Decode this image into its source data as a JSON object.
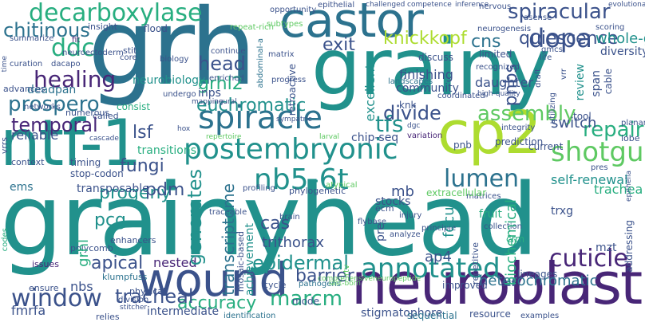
{
  "colors": {
    "background": "#ffffff",
    "palette": [
      "#482677",
      "#3b528b",
      "#2c728e",
      "#21918c",
      "#28ae80",
      "#5ec962",
      "#addc30",
      "#fde725"
    ]
  },
  "words": [
    "grainyhead",
    "grainy",
    "grh",
    "ntf-1",
    "neuroblast",
    "cp2",
    "castor",
    "wound",
    "postembryonic",
    "annotated",
    "decarboxylase",
    "spiracle",
    "nb5-6t",
    "dopa",
    "ddc",
    "chitinous",
    "spiracular",
    "shotgun",
    "lumen",
    "healing",
    "cuticle",
    "window",
    "accuracy",
    "repair",
    "temporal",
    "prospero",
    "tfs",
    "euchromatic",
    "knickkopf",
    "head",
    "grhl2",
    "exit",
    "cns",
    "quiescence",
    "assembly",
    "divide",
    "marcm",
    "barrier",
    "tracheal",
    "lsf",
    "fungi",
    "progeny",
    "pcg",
    "pdm",
    "apical",
    "epidermal",
    "fmrfa",
    "nested",
    "cas",
    "trithorax",
    "heterochromatic",
    "mb",
    "ap4",
    "self-renewal",
    "trachea",
    "switch",
    "whole-genome",
    "diversity",
    "finishing",
    "daughter",
    "variation",
    "chip-seq",
    "stocks",
    "fruit",
    "trxg",
    "reliable",
    "nbs",
    "ems",
    "transposable",
    "transitions",
    "neurobiology",
    "deadpan",
    "timing",
    "stop-codon",
    "enhancers",
    "polycomb",
    "issues",
    "klumpfuss",
    "physical",
    "division",
    "intermediate",
    "identification",
    "stigmatophore",
    "sequential",
    "resource",
    "examples",
    "mode",
    "pathogens",
    "relies",
    "cycle",
    "improved",
    "lineages",
    "set",
    "mzt",
    "crm",
    "pnb",
    "prediction",
    "current",
    "integrity",
    "community",
    "landscapes",
    "knk",
    "coordinated",
    "discuss",
    "recognized",
    "limited",
    "neurogenesis",
    "gmcs",
    "life",
    "asense",
    "nervous",
    "scoring",
    "tool",
    "planar",
    "lobe",
    "pres",
    "matrices",
    "extracellular",
    "atypical",
    "phylogenetic",
    "profiling",
    "brain",
    "ecm",
    "injury",
    "flybase",
    "collection",
    "principle",
    "analyze",
    "traceable",
    "ensure",
    "context",
    "numerous",
    "called",
    "networks",
    "advances",
    "dacapo",
    "curation",
    "summarize",
    "neuroectoderm",
    "fit",
    "insight",
    "flood",
    "stit",
    "core",
    "repeat-rich",
    "continue",
    "matrix",
    "biology",
    "enriched",
    "inps",
    "undergo",
    "mapping",
    "neural",
    "consist",
    "progress",
    "sympatric",
    "larval",
    "repertoire",
    "hox",
    "dgc",
    "high-quality",
    "opportunity",
    "subtypes",
    "epithelial",
    "challenged",
    "competence",
    "inference",
    "evolutionary",
    "comprehensiveneuropeptide",
    "last-born",
    "stitcher",
    "cascade",
    "pnbs",
    "generates",
    "transcriptome",
    "grhl",
    "biochemical",
    "focus",
    "excellent",
    "review",
    "span",
    "cable",
    "pre",
    "achievement",
    "retroactive",
    "abdominal-a",
    "mosaic-based",
    "vrrs",
    "codes",
    "time",
    "addressing",
    "vrr",
    "utilizing",
    "draft",
    "epithelia",
    "repetitive",
    "rtv"
  ]
}
